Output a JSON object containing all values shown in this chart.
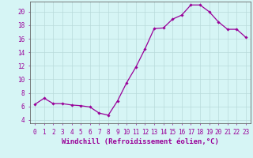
{
  "x": [
    0,
    1,
    2,
    3,
    4,
    5,
    6,
    7,
    8,
    9,
    10,
    11,
    12,
    13,
    14,
    15,
    16,
    17,
    18,
    19,
    20,
    21,
    22,
    23
  ],
  "y": [
    6.3,
    7.2,
    6.4,
    6.4,
    6.2,
    6.1,
    5.9,
    5.0,
    4.7,
    6.8,
    9.5,
    11.8,
    14.5,
    17.5,
    17.6,
    18.9,
    19.5,
    21.0,
    21.0,
    20.0,
    18.5,
    17.4,
    17.4,
    16.2
  ],
  "line_color": "#990099",
  "marker": "D",
  "marker_size": 1.8,
  "line_width": 0.9,
  "background_color": "#d6f5f5",
  "grid_color": "#b8dada",
  "xlabel": "Windchill (Refroidissement éolien,°C)",
  "xlabel_fontsize": 6.5,
  "xlim": [
    -0.5,
    23.5
  ],
  "ylim": [
    3.5,
    21.5
  ],
  "yticks": [
    4,
    6,
    8,
    10,
    12,
    14,
    16,
    18,
    20
  ],
  "xtick_labels": [
    "0",
    "1",
    "2",
    "3",
    "4",
    "5",
    "6",
    "7",
    "8",
    "9",
    "10",
    "11",
    "12",
    "13",
    "14",
    "15",
    "16",
    "17",
    "18",
    "19",
    "20",
    "21",
    "22",
    "23"
  ],
  "tick_fontsize": 5.5,
  "tick_color": "#990099",
  "label_color": "#990099"
}
